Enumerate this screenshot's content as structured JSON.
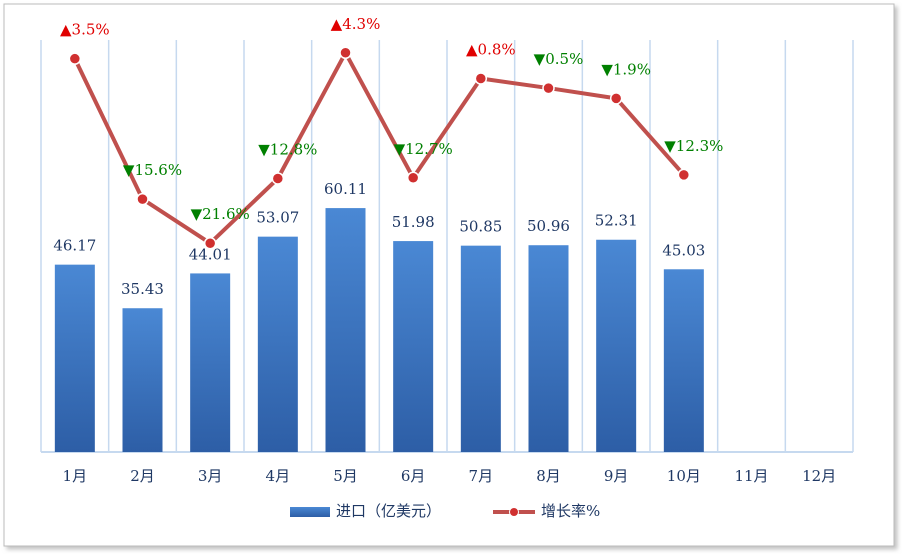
{
  "chart_data": {
    "type": "bar",
    "categories": [
      "1月",
      "2月",
      "3月",
      "4月",
      "5月",
      "6月",
      "7月",
      "8月",
      "9月",
      "10月",
      "11月",
      "12月"
    ],
    "ylim": [
      0,
      104
    ],
    "y2lim": [
      -50,
      7.4
    ],
    "grid": true,
    "legend": "bottom",
    "series": [
      {
        "name": "进口（亿美元）",
        "type": "bar",
        "color": "#3a74c4",
        "values": [
          46.17,
          35.43,
          44.01,
          53.07,
          60.11,
          51.98,
          50.85,
          50.96,
          52.31,
          45.03,
          null,
          null
        ]
      },
      {
        "name": "增长率%",
        "type": "line",
        "axis": "y2",
        "color": "#c0504d",
        "values": [
          3.5,
          -15.6,
          -21.6,
          -12.8,
          4.3,
          -12.7,
          0.8,
          -0.5,
          -1.9,
          -12.3,
          null,
          null
        ],
        "value_labels": [
          "▲3.5%",
          "▼15.6%",
          "▼21.6%",
          "▼12.8%",
          "▲4.3%",
          "▼12.7%",
          "▲0.8%",
          "▼0.5%",
          "▼1.9%",
          "▼12.3%",
          null,
          null
        ]
      }
    ]
  }
}
